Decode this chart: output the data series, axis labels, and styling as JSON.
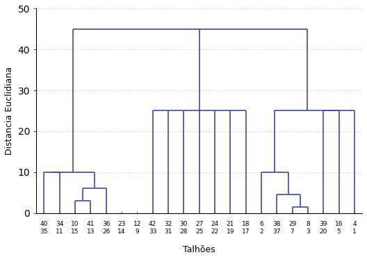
{
  "xlabel": "Talhões",
  "ylabel": "Distancia Euclidiana",
  "ylim": [
    0,
    50
  ],
  "yticks": [
    0,
    10,
    20,
    30,
    40,
    50
  ],
  "line_color": "#4444aa",
  "line_width": 1.2,
  "background_color": "#ffffff",
  "grid_color": "#cccccc",
  "tick_labels_row1": [
    "40",
    "34",
    "10",
    "41",
    "36",
    "23",
    "12",
    "42",
    "32",
    "30",
    "27",
    "24",
    "21",
    "18",
    "6",
    "38",
    "29",
    "8",
    "39",
    "16",
    "4"
  ],
  "tick_labels_row2": [
    "35",
    "11",
    "15",
    "13",
    "26",
    "14",
    "9",
    "33",
    "31",
    "28",
    "25",
    "22",
    "19",
    "17",
    "2",
    "37",
    "7",
    "3",
    "20",
    "5",
    "1"
  ],
  "n_leaves": 21
}
